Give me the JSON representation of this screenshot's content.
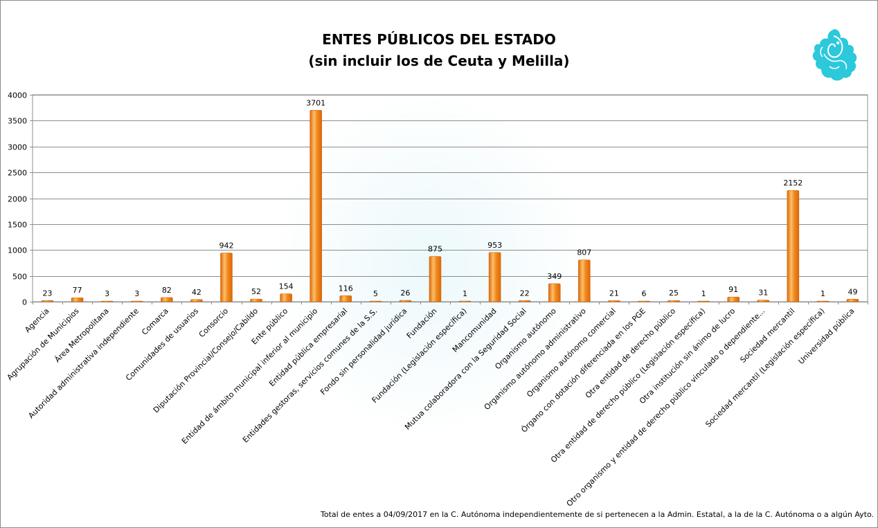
{
  "chart_data": {
    "type": "bar",
    "title": "ENTES PÚBLICOS DEL ESTADO",
    "subtitle": "(sin incluir los de Ceuta y Melilla)",
    "categories": [
      "Agencia",
      "Agrupación de Municipios",
      "Área Metropolitana",
      "Autoridad administrativa independiente",
      "Comarca",
      "Comunidades de usuarios",
      "Consorcio",
      "Diputación Provincial/Consejo/Cabildo",
      "Ente público",
      "Entidad de ámbito municipal inferior al municipio",
      "Entidad pública empresarial",
      "Entidades gestoras, servicios comunes de la S.S.",
      "Fondo sin personalidad jurídica",
      "Fundación",
      "Fundación  (Legislación específica)",
      "Mancomunidad",
      "Mutua colaboradora con la Seguridad Social",
      "Organismo autónomo",
      "Organismo autónomo administrativo",
      "Organismo autónomo comercial",
      "Órgano con dotación diferenciada en los PGE",
      "Otra entidad de derecho público",
      "Otra entidad de derecho público (Legislación específica)",
      "Otra institución sin ánimo de lucro",
      "Otro organismo y entidad de derecho público vinculado o dependiente...",
      "Sociedad mercantil",
      "Sociedad mercantil (Legislación específica)",
      "Universidad pública"
    ],
    "values": [
      23,
      77,
      3,
      3,
      82,
      42,
      942,
      52,
      154,
      3701,
      116,
      5,
      26,
      875,
      1,
      953,
      22,
      349,
      807,
      21,
      6,
      25,
      1,
      91,
      31,
      2152,
      1,
      49
    ],
    "ylim": [
      0,
      4000
    ],
    "yticks": [
      0,
      500,
      1000,
      1500,
      2000,
      2500,
      3000,
      3500,
      4000
    ],
    "grid": true,
    "legend": "none",
    "bar_color": "#f28a1e",
    "bar_highlight": "#fcc06a",
    "bar_shadow": "#d9680c",
    "grid_color": "#8c8c8c"
  },
  "footnote": "Total de entes  a 04/09/2017 en  la C. Autónoma  independientemente  de si pertenecen  a la Admin. Estatal, a la de la C. Autónoma  o a algún Ayto.",
  "logo_icon": "griffin-emblem-icon",
  "logo_color": "#2cc8dc"
}
